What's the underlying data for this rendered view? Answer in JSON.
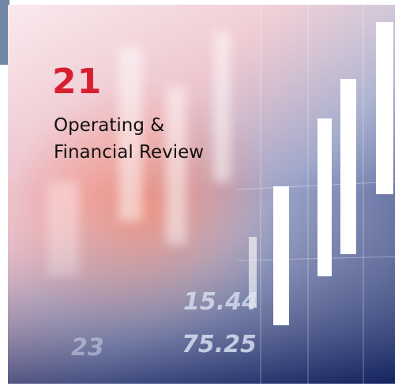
{
  "section": {
    "number": "21",
    "title_lines": [
      "Operating &",
      "Financial Review"
    ]
  },
  "background_figures": [
    "15.44",
    "23",
    "75.25"
  ]
}
